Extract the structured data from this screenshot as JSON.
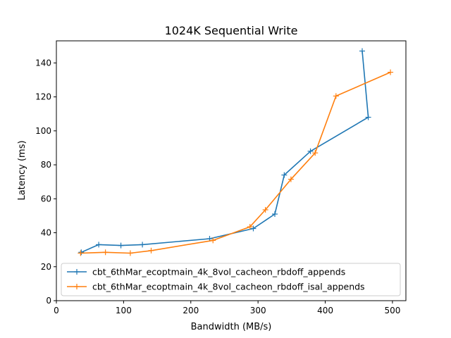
{
  "chart_data": {
    "type": "line",
    "title": "1024K  Sequential Write",
    "xlabel": "Bandwidth (MB/s)",
    "ylabel": "Latency (ms)",
    "xlim": [
      0,
      520
    ],
    "ylim": [
      0,
      153
    ],
    "xticks": [
      0,
      100,
      200,
      300,
      400,
      500
    ],
    "yticks": [
      0,
      20,
      40,
      60,
      80,
      100,
      120,
      140
    ],
    "grid": false,
    "legend_position": "lower-left",
    "series": [
      {
        "name": "cbt_6thMar_ecoptmain_4k_8vol_cacheon_rbdoff_appends",
        "color": "#1f77b4",
        "marker": "+",
        "x": [
          37,
          63,
          96,
          128,
          228,
          293,
          325,
          339,
          378,
          464,
          455
        ],
        "y": [
          28.5,
          33,
          32.5,
          33,
          36.5,
          42.5,
          51,
          74,
          88,
          108,
          147
        ]
      },
      {
        "name": "cbt_6thMar_ecoptmain_4k_8vol_cacheon_rbdoff_isal_appends",
        "color": "#ff7f0e",
        "marker": "+",
        "x": [
          36,
          73,
          110,
          141,
          233,
          288,
          311,
          349,
          385,
          416,
          497
        ],
        "y": [
          28,
          28.5,
          28,
          29.5,
          35.5,
          43.5,
          53.5,
          71.5,
          87,
          120.5,
          134.5
        ]
      }
    ]
  }
}
